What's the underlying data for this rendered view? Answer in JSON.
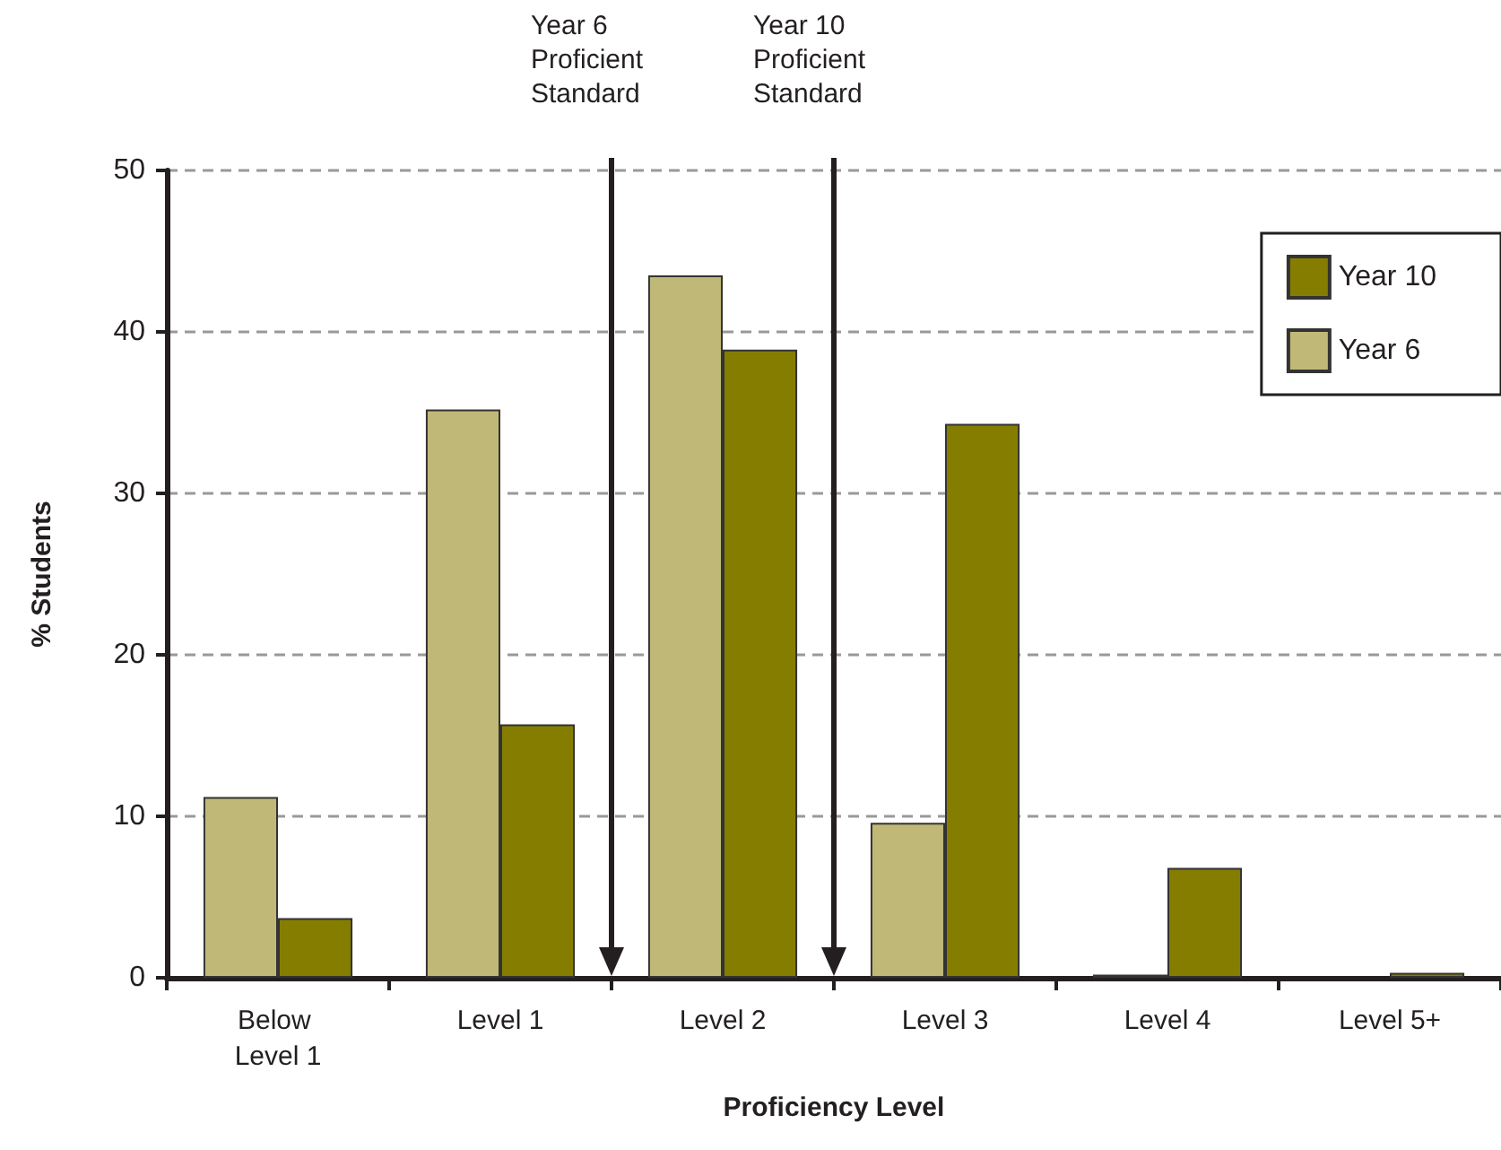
{
  "chart_data": {
    "type": "bar",
    "xlabel": "Proficiency Level",
    "ylabel": "% Students",
    "categories": [
      "Below Level 1",
      "Level 1",
      "Level 2",
      "Level 3",
      "Level 4",
      "Level 5+"
    ],
    "series": [
      {
        "name": "Year 6",
        "color": "#c0b877",
        "values": [
          11.2,
          35.2,
          43.5,
          9.6,
          0.2,
          0
        ]
      },
      {
        "name": "Year 10",
        "color": "#857d00",
        "values": [
          3.7,
          15.7,
          38.9,
          34.3,
          6.8,
          0.3
        ]
      }
    ],
    "ylim": [
      0,
      50
    ],
    "yticks": [
      0,
      10,
      20,
      30,
      40,
      50
    ],
    "grid": "y",
    "legend": "top right",
    "annotations": [
      "Year 6\nProficient\nStandard",
      "Year 10\nProficient\nStandard"
    ]
  }
}
